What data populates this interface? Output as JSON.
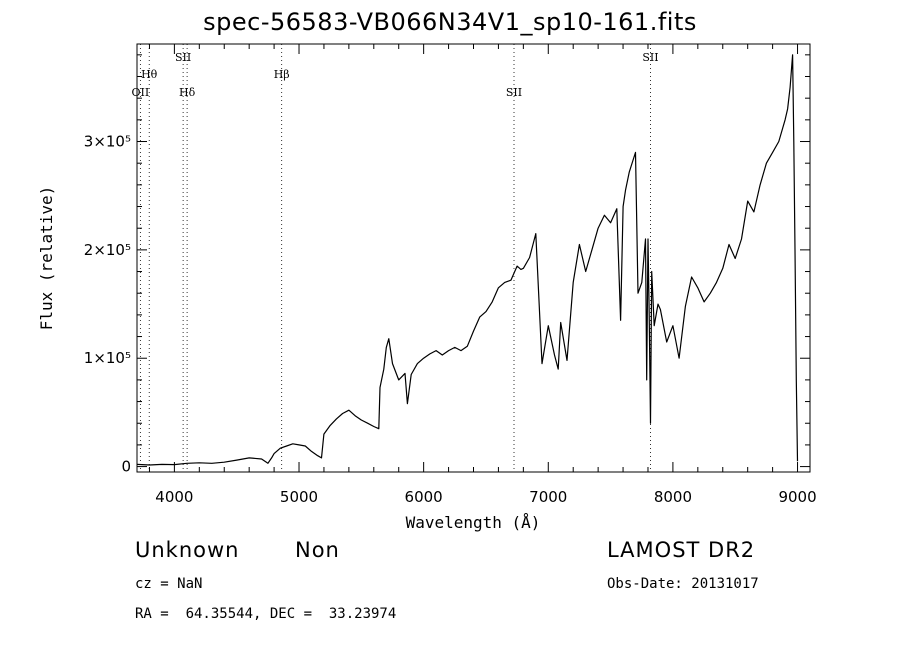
{
  "title": "spec-56583-VB066N34V1_sp10-161.fits",
  "info": {
    "class": "Unknown",
    "subclass": "Non",
    "survey": "LAMOST DR2",
    "cz": "cz = NaN",
    "obs_date": "Obs-Date: 20131017",
    "coords": "RA =  64.35544, DEC =  33.23974"
  },
  "chart_data": {
    "type": "line",
    "xlabel": "Wavelength (Å)",
    "ylabel": "Flux (relative)",
    "xlim": [
      3700,
      9100
    ],
    "ylim": [
      -5000,
      390000
    ],
    "xticks": [
      4000,
      5000,
      6000,
      7000,
      8000,
      9000
    ],
    "yticks": [
      {
        "value": 0,
        "label": "0"
      },
      {
        "value": 100000,
        "label": "1×10⁵"
      },
      {
        "value": 200000,
        "label": "2×10⁵"
      },
      {
        "value": 300000,
        "label": "3×10⁵"
      }
    ],
    "lines": [
      {
        "label": "OII",
        "x": 3727,
        "row": 3
      },
      {
        "label": "Hθ",
        "x": 3798,
        "row": 2
      },
      {
        "label": "SII",
        "x": 4070,
        "row": 1
      },
      {
        "label": "Hδ",
        "x": 4102,
        "row": 3
      },
      {
        "label": "Hβ",
        "x": 4861,
        "row": 2
      },
      {
        "label": "SII",
        "x": 6725,
        "row": 3
      },
      {
        "label": "SII",
        "x": 7820,
        "row": 1
      }
    ],
    "series": [
      {
        "x": [
          3700,
          3800,
          3900,
          4000,
          4100,
          4200,
          4300,
          4400,
          4500,
          4600,
          4700,
          4750,
          4780,
          4800,
          4850,
          4900,
          4950,
          5000,
          5050,
          5100,
          5150,
          5180,
          5200,
          5250,
          5300,
          5350,
          5400,
          5450,
          5500,
          5550,
          5600,
          5640,
          5650,
          5680,
          5700,
          5720,
          5750,
          5800,
          5850,
          5870,
          5900,
          5950,
          6000,
          6050,
          6100,
          6150,
          6200,
          6250,
          6300,
          6350,
          6400,
          6450,
          6500,
          6550,
          6600,
          6650,
          6700,
          6750,
          6780,
          6800,
          6850,
          6900,
          6950,
          7000,
          7050,
          7080,
          7100,
          7150,
          7200,
          7250,
          7300,
          7350,
          7400,
          7450,
          7500,
          7550,
          7580,
          7600,
          7620,
          7650,
          7700,
          7720,
          7750,
          7780,
          7790,
          7800,
          7810,
          7820,
          7830,
          7850,
          7880,
          7900,
          7950,
          8000,
          8050,
          8100,
          8150,
          8200,
          8250,
          8300,
          8350,
          8400,
          8450,
          8500,
          8550,
          8600,
          8650,
          8700,
          8750,
          8800,
          8850,
          8900,
          8920,
          8940,
          8960,
          8970,
          8980,
          8990,
          9000
        ],
        "y": [
          2000,
          1500,
          2000,
          1800,
          3000,
          3500,
          3000,
          4000,
          6000,
          8000,
          7000,
          3000,
          8000,
          12000,
          17000,
          19000,
          21000,
          20000,
          19000,
          14000,
          10000,
          8000,
          30000,
          38000,
          44000,
          49000,
          52000,
          47000,
          43000,
          40000,
          37000,
          35000,
          73000,
          90000,
          110000,
          118000,
          95000,
          80000,
          86000,
          58000,
          85000,
          95000,
          100000,
          104000,
          107000,
          103000,
          107000,
          110000,
          107000,
          111000,
          125000,
          138000,
          143000,
          152000,
          165000,
          170000,
          172000,
          185000,
          182000,
          183000,
          193000,
          215000,
          95000,
          130000,
          103000,
          90000,
          133000,
          98000,
          170000,
          205000,
          180000,
          200000,
          220000,
          232000,
          225000,
          238000,
          135000,
          240000,
          255000,
          272000,
          290000,
          160000,
          170000,
          210000,
          80000,
          210000,
          140000,
          40000,
          180000,
          130000,
          150000,
          145000,
          115000,
          130000,
          100000,
          148000,
          175000,
          165000,
          152000,
          160000,
          170000,
          183000,
          205000,
          192000,
          210000,
          245000,
          235000,
          260000,
          280000,
          290000,
          300000,
          320000,
          330000,
          350000,
          380000,
          300000,
          200000,
          80000,
          5000
        ]
      }
    ]
  }
}
